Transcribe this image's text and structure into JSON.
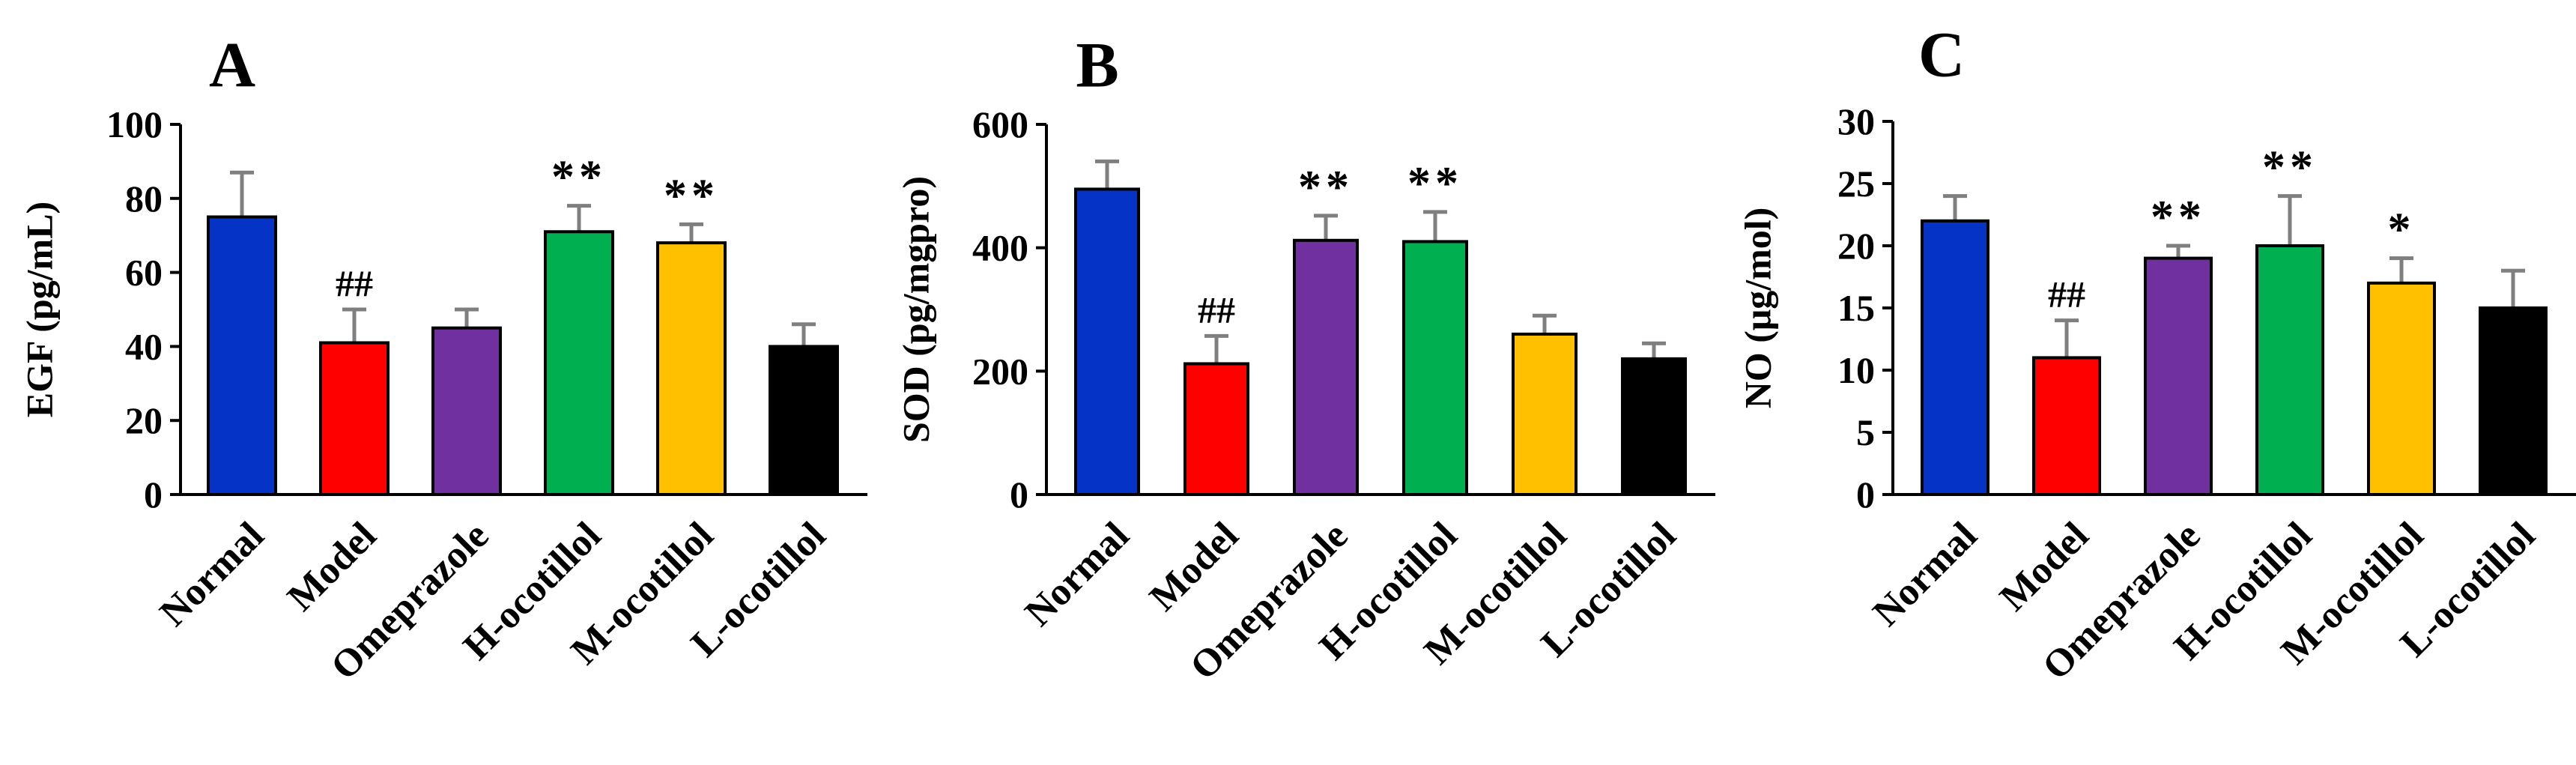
{
  "chart_data": [
    {
      "panel_label": "A",
      "type": "bar",
      "ylabel": "EGF (pg/mL)",
      "ylim": [
        0,
        100
      ],
      "yticks": [
        0,
        20,
        40,
        60,
        80,
        100
      ],
      "categories": [
        "Normal",
        "Model",
        "Omeprazole",
        "H-ocotillol",
        "M-ocotillol",
        "L-ocotillol"
      ],
      "values": [
        75,
        41,
        45,
        71,
        68,
        40
      ],
      "errors": [
        12,
        9,
        5,
        7,
        5,
        6
      ],
      "annotations": [
        "",
        "##",
        "",
        "**",
        "**",
        ""
      ]
    },
    {
      "panel_label": "B",
      "type": "bar",
      "ylabel": "SOD (pg/mgpro)",
      "ylim": [
        0,
        600
      ],
      "yticks": [
        0,
        200,
        400,
        600
      ],
      "categories": [
        "Normal",
        "Model",
        "Omeprazole",
        "H-ocotillol",
        "M-ocotillol",
        "L-ocotillol"
      ],
      "values": [
        495,
        212,
        412,
        410,
        260,
        220
      ],
      "errors": [
        45,
        45,
        40,
        48,
        30,
        25
      ],
      "annotations": [
        "",
        "##",
        "**",
        "**",
        "",
        ""
      ]
    },
    {
      "panel_label": "C",
      "type": "bar",
      "ylabel": "NO (μg/mol)",
      "ylim": [
        0,
        30
      ],
      "yticks": [
        0,
        5,
        10,
        15,
        20,
        25,
        30
      ],
      "categories": [
        "Normal",
        "Model",
        "Omeprazole",
        "H-ocotillol",
        "M-ocotillol",
        "L-ocotillol"
      ],
      "values": [
        22,
        11,
        19,
        20,
        17,
        15
      ],
      "errors": [
        2,
        3,
        1,
        4,
        2,
        3
      ],
      "annotations": [
        "",
        "##",
        "**",
        "**",
        "*",
        ""
      ]
    }
  ],
  "colors": [
    "#0433c6",
    "#ff0000",
    "#7030a0",
    "#00b050",
    "#ffc000",
    "#000000"
  ],
  "error_bar_color": "#7f7f7f"
}
